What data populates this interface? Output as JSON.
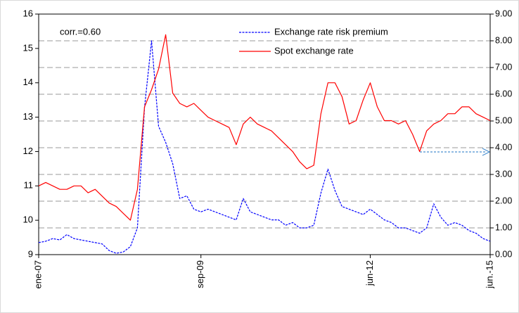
{
  "chart_data": {
    "type": "line",
    "annotation": "corr.=0.60",
    "categories": [
      "ene-07",
      null,
      null,
      null,
      null,
      null,
      null,
      null,
      null,
      null,
      null,
      null,
      null,
      null,
      null,
      null,
      null,
      null,
      null,
      null,
      null,
      null,
      null,
      "sep-09",
      null,
      null,
      null,
      null,
      null,
      null,
      null,
      null,
      null,
      null,
      null,
      null,
      null,
      null,
      null,
      null,
      null,
      null,
      null,
      null,
      null,
      null,
      null,
      "jun-12",
      null,
      null,
      null,
      null,
      null,
      null,
      null,
      null,
      null,
      null,
      null,
      null,
      null,
      null,
      null,
      null,
      "jun.-15"
    ],
    "series": [
      {
        "name": "Exchange rate risk premium",
        "color": "#0000ff",
        "axis": "y2",
        "dashed": true,
        "values": [
          0.45,
          0.5,
          0.6,
          0.55,
          0.75,
          0.6,
          0.55,
          0.5,
          0.45,
          0.4,
          0.15,
          0.05,
          0.1,
          0.3,
          1.0,
          5.5,
          8.0,
          4.8,
          4.2,
          3.4,
          2.1,
          2.2,
          1.7,
          1.6,
          1.7,
          1.6,
          1.5,
          1.4,
          1.3,
          2.1,
          1.6,
          1.5,
          1.4,
          1.3,
          1.3,
          1.1,
          1.2,
          1.0,
          1.0,
          1.1,
          2.3,
          3.2,
          2.4,
          1.8,
          1.7,
          1.6,
          1.5,
          1.7,
          1.5,
          1.3,
          1.2,
          1.0,
          1.0,
          0.9,
          0.8,
          1.0,
          1.9,
          1.4,
          1.1,
          1.2,
          1.1,
          0.9,
          0.8,
          0.6,
          0.5
        ]
      },
      {
        "name": "Spot exchange rate",
        "color": "#ff0000",
        "axis": "y",
        "values": [
          11.0,
          11.1,
          11.0,
          10.9,
          10.9,
          11.0,
          11.0,
          10.8,
          10.9,
          10.7,
          10.5,
          10.4,
          10.2,
          10.0,
          10.9,
          13.3,
          13.8,
          14.4,
          15.4,
          13.7,
          13.4,
          13.3,
          13.4,
          13.2,
          13.0,
          12.9,
          12.8,
          12.7,
          12.2,
          12.8,
          13.0,
          12.8,
          12.7,
          12.6,
          12.4,
          12.2,
          12.0,
          11.7,
          11.5,
          11.6,
          13.1,
          14.0,
          14.0,
          13.6,
          12.8,
          12.9,
          13.5,
          14.0,
          13.3,
          12.9,
          12.9,
          12.8,
          12.9,
          12.5,
          12.0,
          12.6,
          12.8,
          12.9,
          13.1,
          13.1,
          13.3,
          13.3,
          13.1,
          13.0,
          12.9
        ]
      }
    ],
    "ylim": [
      9,
      16
    ],
    "yticks": [
      9,
      10,
      11,
      12,
      13,
      14,
      15,
      16
    ],
    "y2lim": [
      0,
      9
    ],
    "y2ticks": [
      {
        "value": 0,
        "label": "0.00"
      },
      {
        "value": 1,
        "label": "1.00"
      },
      {
        "value": 2,
        "label": "2.00"
      },
      {
        "value": 3,
        "label": "3.00"
      },
      {
        "value": 4,
        "label": "4.00"
      },
      {
        "value": 5,
        "label": "5.00"
      },
      {
        "value": 6,
        "label": "6.00"
      },
      {
        "value": 7,
        "label": "7.00"
      },
      {
        "value": 8,
        "label": "8.00"
      },
      {
        "value": 9,
        "label": "9.00"
      }
    ],
    "grid": true
  }
}
